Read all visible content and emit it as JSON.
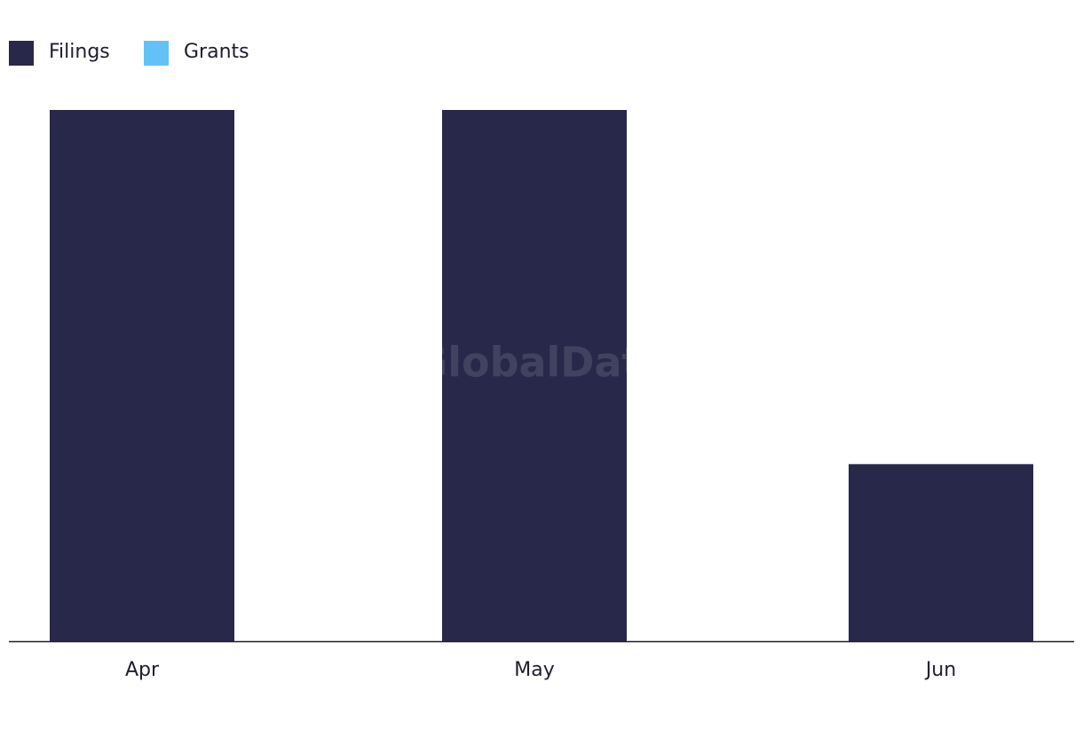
{
  "chart_data": {
    "type": "bar",
    "watermark": "GlobalData",
    "categories": [
      "Apr",
      "May",
      "Jun"
    ],
    "series": [
      {
        "name": "Filings",
        "color": "#28284a",
        "values": [
          3,
          3,
          1
        ]
      },
      {
        "name": "Grants",
        "color": "#62c2f8",
        "values": [
          0,
          0,
          0
        ]
      }
    ]
  }
}
